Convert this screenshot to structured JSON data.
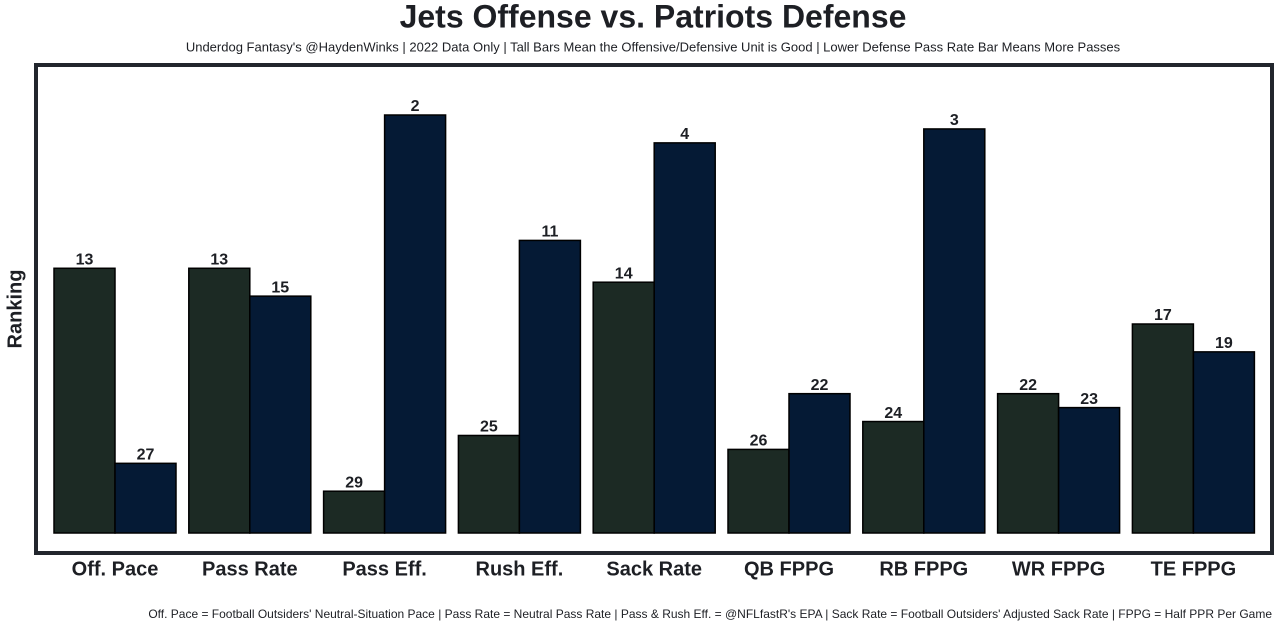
{
  "chart_data": {
    "type": "bar",
    "title": "Jets Offense vs. Patriots Defense",
    "subtitle": "Underdog Fantasy's @HaydenWinks | 2022 Data Only | Tall Bars Mean the Offensive/Defensive Unit is Good | Lower Defense Pass Rate Bar Means More Passes",
    "y_label": "Ranking",
    "footnote": "Off. Pace = Football Outsiders' Neutral-Situation Pace | Pass Rate = Neutral Pass Rate | Pass & Rush Eff. = @NFLfastR's EPA | Sack Rate = Football Outsiders' Adjusted Sack Rate | FPPG = Half PPR Per Game",
    "categories": [
      "Off. Pace",
      "Pass Rate",
      "Pass Eff.",
      "Rush Eff.",
      "Sack Rate",
      "QB FPPG",
      "RB FPPG",
      "WR FPPG",
      "TE FPPG"
    ],
    "series": [
      {
        "color": "#1c2a24",
        "values": [
          13,
          13,
          29,
          25,
          14,
          26,
          24,
          22,
          17
        ]
      },
      {
        "color": "#051a35",
        "values": [
          27,
          15,
          2,
          11,
          4,
          22,
          3,
          23,
          19
        ]
      }
    ],
    "ylim": [
      32,
      -0.8
    ]
  }
}
